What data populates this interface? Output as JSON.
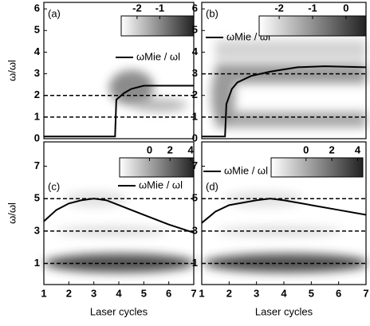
{
  "chart_data": [
    {
      "type": "line",
      "label": "(a)",
      "ylabel": "ω/ωl",
      "x": [
        1,
        3.85,
        3.9,
        4.0,
        4.2,
        4.5,
        5.0,
        7
      ],
      "series": [
        {
          "name": "ωMie / ωl",
          "color": "#000000",
          "values": [
            0.1,
            0.1,
            1.8,
            1.9,
            2.1,
            2.3,
            2.45,
            2.45
          ]
        }
      ],
      "xlim": [
        1,
        7
      ],
      "ylim": [
        0,
        6.3
      ],
      "yticks": [
        0,
        1,
        2,
        3,
        4,
        5,
        6
      ],
      "hlines": [
        1,
        2
      ],
      "colorbar": {
        "lim": [
          -2.7,
          0.5
        ],
        "ticks": [
          -2,
          -1
        ]
      }
    },
    {
      "type": "line",
      "label": "(b)",
      "x": [
        1,
        1.85,
        1.9,
        2.1,
        2.3,
        2.8,
        3.5,
        4.5,
        5.5,
        7
      ],
      "series": [
        {
          "name": "ωMie / ωl",
          "color": "#000000",
          "values": [
            0.1,
            0.1,
            1.6,
            2.3,
            2.6,
            2.9,
            3.1,
            3.3,
            3.35,
            3.3
          ]
        }
      ],
      "xlim": [
        1,
        7
      ],
      "ylim": [
        0,
        6.3
      ],
      "yticks": [
        0,
        1,
        2,
        3,
        4,
        5,
        6
      ],
      "hlines": [
        1,
        3
      ],
      "colorbar": {
        "lim": [
          -2.6,
          0.6
        ],
        "ticks": [
          -2,
          -1,
          0
        ]
      }
    },
    {
      "type": "line",
      "label": "(c)",
      "ylabel": "ω/ωl",
      "xlabel": "Laser cycles",
      "x": [
        1,
        1.5,
        2,
        2.5,
        3,
        3.5,
        4,
        5,
        6,
        7
      ],
      "series": [
        {
          "name": "ωMie / ωl",
          "color": "#000000",
          "values": [
            3.6,
            4.3,
            4.7,
            4.9,
            5.0,
            4.9,
            4.6,
            4.0,
            3.4,
            2.9
          ]
        }
      ],
      "xlim": [
        1,
        7
      ],
      "ylim": [
        -0.3,
        8.5
      ],
      "xticks": [
        1,
        2,
        3,
        4,
        5,
        6,
        7
      ],
      "yticks": [
        1,
        3,
        5,
        7
      ],
      "hlines": [
        1,
        3,
        5
      ],
      "colorbar": {
        "lim": [
          -2.9,
          4.3
        ],
        "ticks": [
          0,
          2,
          4
        ]
      }
    },
    {
      "type": "line",
      "label": "(d)",
      "xlabel": "Laser cycles",
      "x": [
        1,
        1.5,
        2,
        3,
        3.5,
        4,
        5,
        6,
        7
      ],
      "series": [
        {
          "name": "ωMie / ωl",
          "color": "#000000",
          "values": [
            3.5,
            4.2,
            4.6,
            4.9,
            5.0,
            4.9,
            4.6,
            4.3,
            4.0
          ]
        }
      ],
      "xlim": [
        1,
        7
      ],
      "ylim": [
        -0.3,
        8.5
      ],
      "xticks": [
        1,
        2,
        3,
        4,
        5,
        6,
        7
      ],
      "yticks": [
        1,
        3,
        5,
        7
      ],
      "hlines": [
        1,
        3,
        5
      ],
      "colorbar": {
        "lim": [
          -2.7,
          4.4
        ],
        "ticks": [
          0,
          2,
          4
        ]
      }
    }
  ]
}
